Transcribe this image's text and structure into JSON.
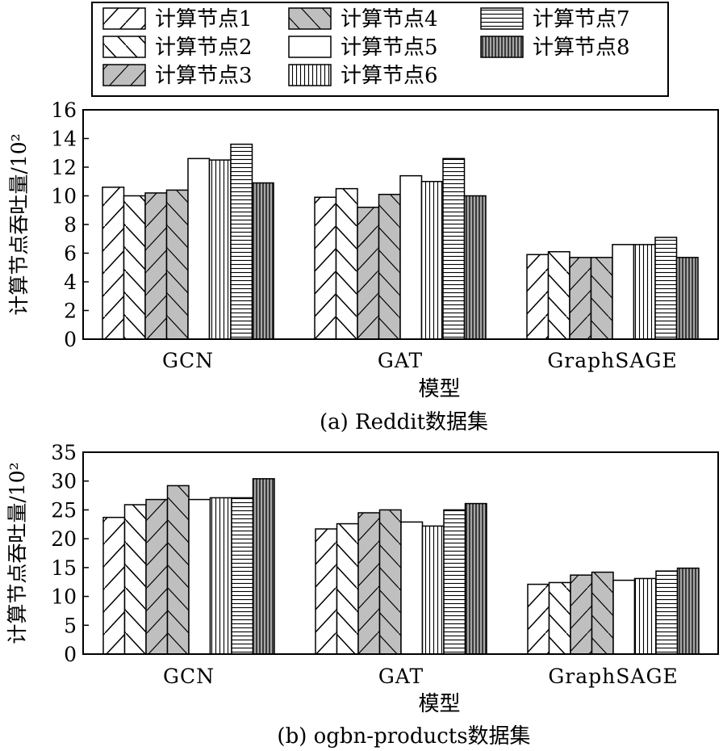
{
  "legend": {
    "items": [
      {
        "label": "计算节点1",
        "pattern": "diag-fwd"
      },
      {
        "label": "计算节点2",
        "pattern": "diag-back"
      },
      {
        "label": "计算节点3",
        "pattern": "gray-diag"
      },
      {
        "label": "计算节点4",
        "pattern": "gray-back"
      },
      {
        "label": "计算节点5",
        "pattern": "white"
      },
      {
        "label": "计算节点6",
        "pattern": "vlines"
      },
      {
        "label": "计算节点7",
        "pattern": "hlines"
      },
      {
        "label": "计算节点8",
        "pattern": "gray-vlines"
      }
    ]
  },
  "chart_data": [
    {
      "type": "bar",
      "caption": "(a) Reddit数据集",
      "xlabel": "模型",
      "ylabel": "计算节点吞吐量/10²",
      "categories": [
        "GCN",
        "GAT",
        "GraphSAGE"
      ],
      "ylim": [
        0,
        16
      ],
      "yticks": [
        0,
        2,
        4,
        6,
        8,
        10,
        12,
        14,
        16
      ],
      "series": [
        {
          "name": "计算节点1",
          "values": [
            10.6,
            9.9,
            5.9
          ]
        },
        {
          "name": "计算节点2",
          "values": [
            10.0,
            10.5,
            6.1
          ]
        },
        {
          "name": "计算节点3",
          "values": [
            10.2,
            9.2,
            5.7
          ]
        },
        {
          "name": "计算节点4",
          "values": [
            10.4,
            10.1,
            5.7
          ]
        },
        {
          "name": "计算节点5",
          "values": [
            12.6,
            11.4,
            6.6
          ]
        },
        {
          "name": "计算节点6",
          "values": [
            12.5,
            11.0,
            6.6
          ]
        },
        {
          "name": "计算节点7",
          "values": [
            13.6,
            12.6,
            7.1
          ]
        },
        {
          "name": "计算节点8",
          "values": [
            10.9,
            10.0,
            5.7
          ]
        }
      ]
    },
    {
      "type": "bar",
      "caption": "(b) ogbn-products数据集",
      "xlabel": "模型",
      "ylabel": "计算节点吞吐量/10²",
      "categories": [
        "GCN",
        "GAT",
        "GraphSAGE"
      ],
      "ylim": [
        0,
        35
      ],
      "yticks": [
        0,
        5,
        10,
        15,
        20,
        25,
        30,
        35
      ],
      "series": [
        {
          "name": "计算节点1",
          "values": [
            23.7,
            21.7,
            12.1
          ]
        },
        {
          "name": "计算节点2",
          "values": [
            25.9,
            22.6,
            12.4
          ]
        },
        {
          "name": "计算节点3",
          "values": [
            26.8,
            24.5,
            13.7
          ]
        },
        {
          "name": "计算节点4",
          "values": [
            29.2,
            25.0,
            14.2
          ]
        },
        {
          "name": "计算节点5",
          "values": [
            26.8,
            22.9,
            12.8
          ]
        },
        {
          "name": "计算节点6",
          "values": [
            27.1,
            22.2,
            13.1
          ]
        },
        {
          "name": "计算节点7",
          "values": [
            27.1,
            25.0,
            14.4
          ]
        },
        {
          "name": "计算节点8",
          "values": [
            30.4,
            26.1,
            14.9
          ]
        }
      ]
    }
  ]
}
